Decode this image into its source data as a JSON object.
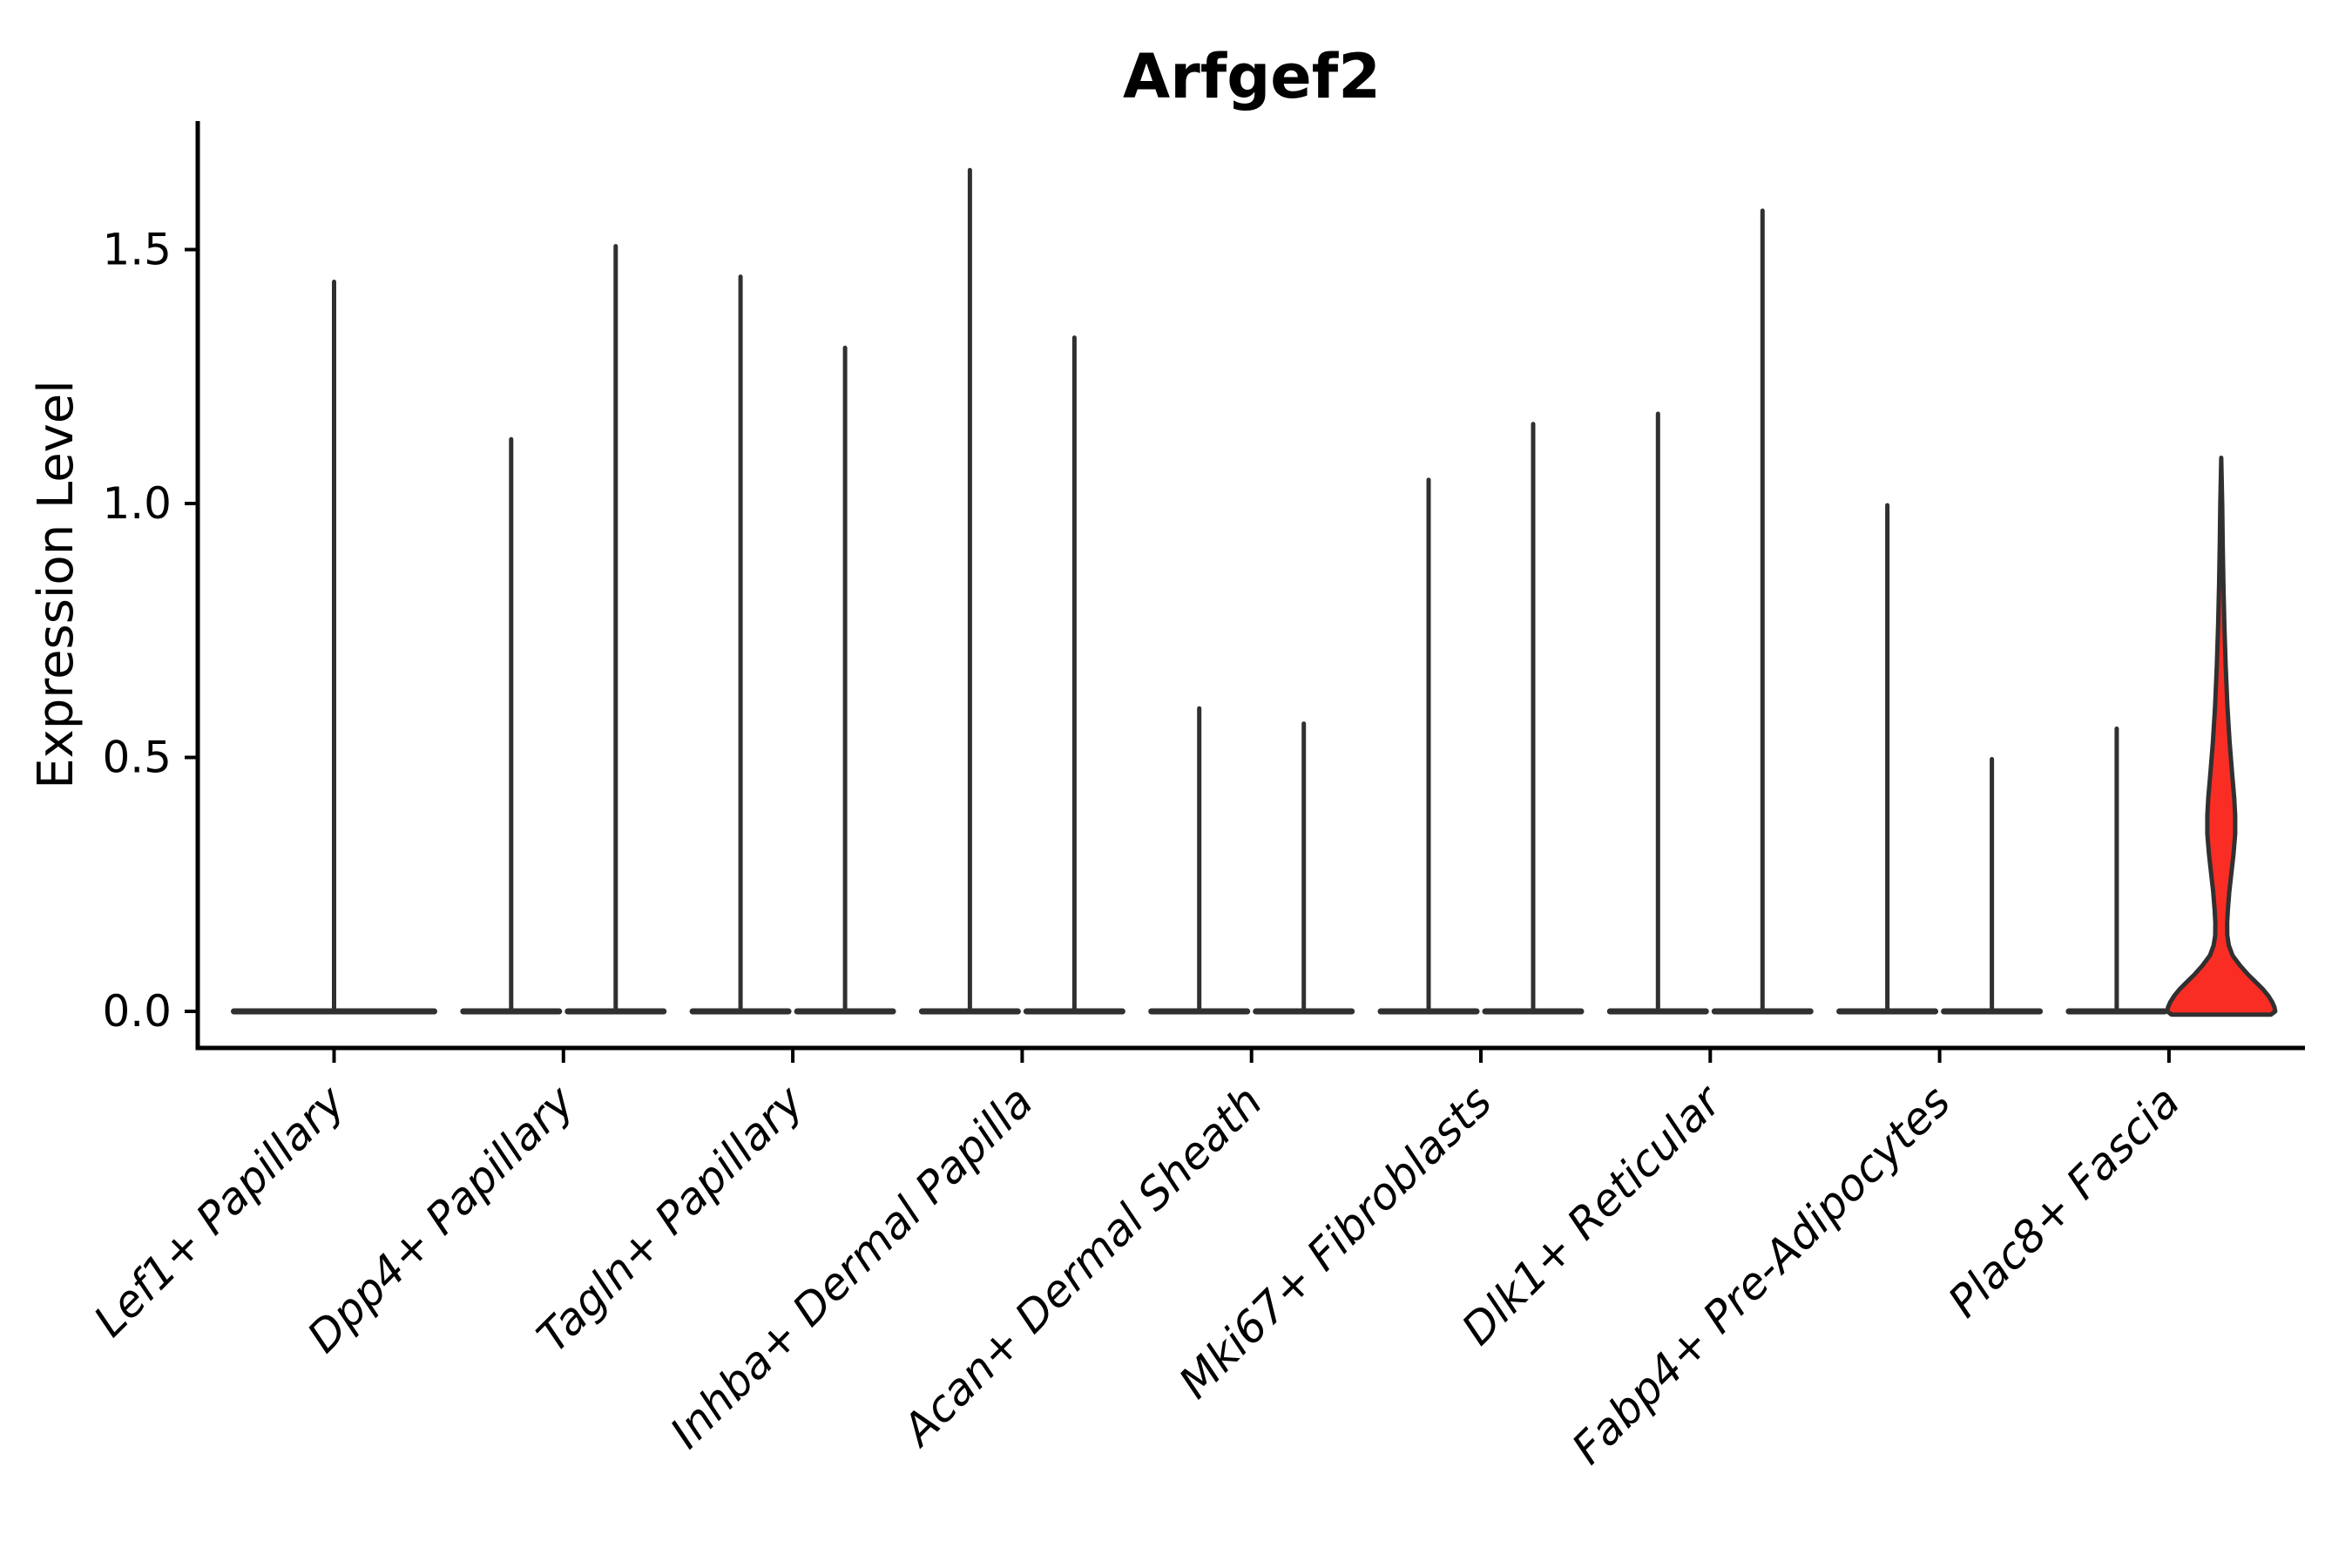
{
  "title": "Arfgef2",
  "y_axis": {
    "label": "Expression Level",
    "tick_labels": [
      "0.0",
      "0.5",
      "1.0",
      "1.5"
    ],
    "tick_values": [
      0.0,
      0.5,
      1.0,
      1.5
    ]
  },
  "x_axis": {
    "categories": [
      "Lef1+ Papillary",
      "Dpp4+ Papillary",
      "Tagln+ Papillary",
      "Inhba+ Dermal Papilla",
      "Acan+ Dermal Sheath",
      "Mki67+ Fibroblasts",
      "Dlk1+ Reticular",
      "Fabp4+ Pre-Adipocytes",
      "Plac8+ Fascia"
    ]
  },
  "colors": {
    "background": "#ffffff",
    "violin_outline": "#303030",
    "highlight_fill": "#fa2d25",
    "spine": "#000000",
    "text": "#000000"
  },
  "chart_data": {
    "type": "violin",
    "title": "Arfgef2",
    "xlabel": "",
    "ylabel": "Expression Level",
    "ylim": [
      -0.072,
      1.753
    ],
    "yticks": [
      0.0,
      0.5,
      1.0,
      1.5
    ],
    "grid": false,
    "legend": null,
    "categories": [
      "Lef1+ Papillary",
      "Dpp4+ Papillary",
      "Tagln+ Papillary",
      "Inhba+ Dermal Papilla",
      "Acan+ Dermal Sheath",
      "Mki67+ Fibroblasts",
      "Dlk1+ Reticular",
      "Fabp4+ Pre-Adipocytes",
      "Plac8+ Fascia"
    ],
    "violin_description": "Most violins collapse to a thin spike (few expressing cells) with a flat wide base at 0; the right violin of Plac8+ Fascia is highlighted red with a visible density bulge.",
    "violins": [
      {
        "category_index": 0,
        "category": "Lef1+ Papillary",
        "slot": "full",
        "max_expression": 1.44,
        "highlight": false
      },
      {
        "category_index": 1,
        "category": "Dpp4+ Papillary",
        "slot": "left",
        "max_expression": 1.13,
        "highlight": false
      },
      {
        "category_index": 1,
        "category": "Dpp4+ Papillary",
        "slot": "right",
        "max_expression": 1.51,
        "highlight": false
      },
      {
        "category_index": 2,
        "category": "Tagln+ Papillary",
        "slot": "left",
        "max_expression": 1.45,
        "highlight": false
      },
      {
        "category_index": 2,
        "category": "Tagln+ Papillary",
        "slot": "right",
        "max_expression": 1.31,
        "highlight": false
      },
      {
        "category_index": 3,
        "category": "Inhba+ Dermal Papilla",
        "slot": "left",
        "max_expression": 1.66,
        "highlight": false
      },
      {
        "category_index": 3,
        "category": "Inhba+ Dermal Papilla",
        "slot": "right",
        "max_expression": 1.33,
        "highlight": false
      },
      {
        "category_index": 4,
        "category": "Acan+ Dermal Sheath",
        "slot": "left",
        "max_expression": 0.6,
        "highlight": false
      },
      {
        "category_index": 4,
        "category": "Acan+ Dermal Sheath",
        "slot": "right",
        "max_expression": 0.57,
        "highlight": false
      },
      {
        "category_index": 5,
        "category": "Mki67+ Fibroblasts",
        "slot": "left",
        "max_expression": 1.05,
        "highlight": false
      },
      {
        "category_index": 5,
        "category": "Mki67+ Fibroblasts",
        "slot": "right",
        "max_expression": 1.16,
        "highlight": false
      },
      {
        "category_index": 6,
        "category": "Dlk1+ Reticular",
        "slot": "left",
        "max_expression": 1.18,
        "highlight": false
      },
      {
        "category_index": 6,
        "category": "Dlk1+ Reticular",
        "slot": "right",
        "max_expression": 1.58,
        "highlight": false
      },
      {
        "category_index": 7,
        "category": "Fabp4+ Pre-Adipocytes",
        "slot": "left",
        "max_expression": 1.0,
        "highlight": false
      },
      {
        "category_index": 7,
        "category": "Fabp4+ Pre-Adipocytes",
        "slot": "right",
        "max_expression": 0.5,
        "highlight": false
      },
      {
        "category_index": 8,
        "category": "Plac8+ Fascia",
        "slot": "left",
        "max_expression": 0.56,
        "highlight": false
      },
      {
        "category_index": 8,
        "category": "Plac8+ Fascia",
        "slot": "right",
        "max_expression": 1.09,
        "highlight": true
      }
    ],
    "highlight_profile": [
      [
        1.09,
        0.0
      ],
      [
        1.0,
        0.018
      ],
      [
        0.92,
        0.028
      ],
      [
        0.84,
        0.04
      ],
      [
        0.76,
        0.058
      ],
      [
        0.68,
        0.082
      ],
      [
        0.6,
        0.115
      ],
      [
        0.53,
        0.155
      ],
      [
        0.47,
        0.2
      ],
      [
        0.42,
        0.24
      ],
      [
        0.385,
        0.258
      ],
      [
        0.35,
        0.258
      ],
      [
        0.31,
        0.228
      ],
      [
        0.27,
        0.185
      ],
      [
        0.235,
        0.148
      ],
      [
        0.2,
        0.122
      ],
      [
        0.175,
        0.11
      ],
      [
        0.15,
        0.112
      ],
      [
        0.13,
        0.14
      ],
      [
        0.11,
        0.21
      ],
      [
        0.09,
        0.35
      ],
      [
        0.072,
        0.5
      ],
      [
        0.057,
        0.645
      ],
      [
        0.043,
        0.775
      ],
      [
        0.03,
        0.875
      ],
      [
        0.018,
        0.945
      ],
      [
        0.008,
        0.985
      ],
      [
        0.0,
        1.0
      ]
    ]
  }
}
